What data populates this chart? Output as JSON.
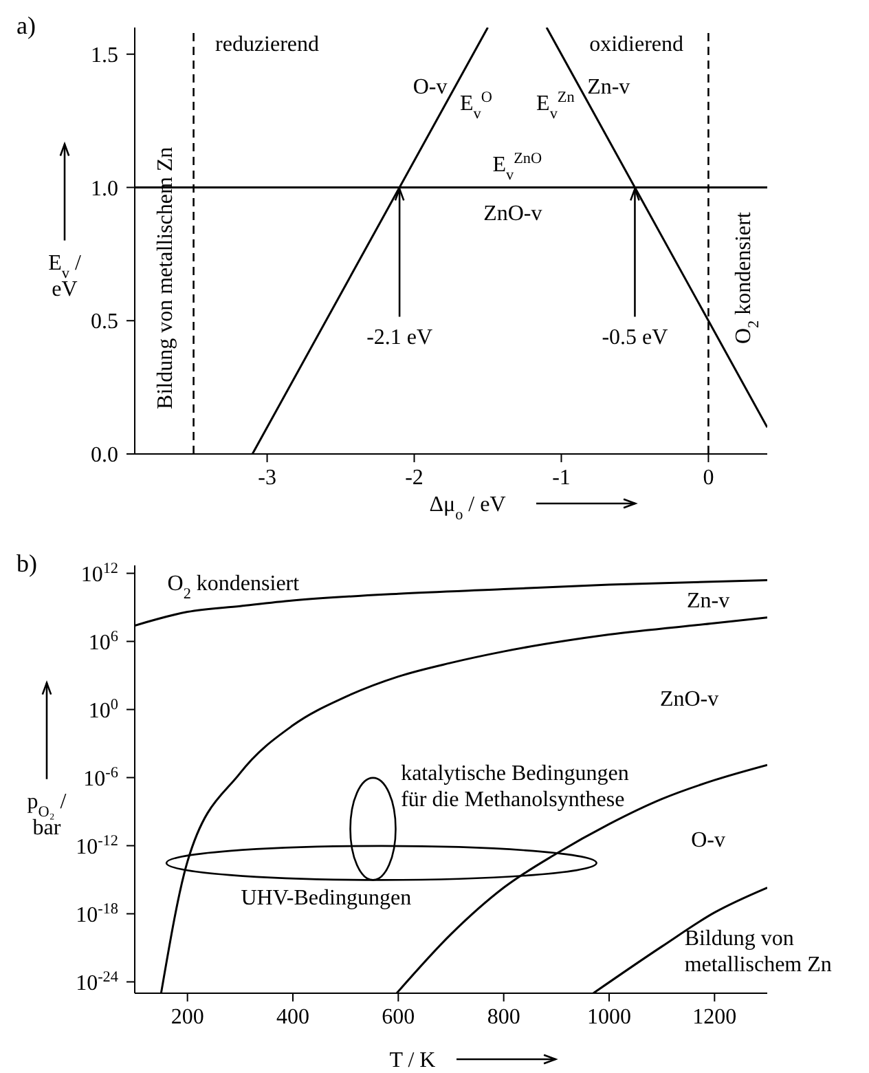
{
  "chart_data": [
    {
      "type": "line",
      "title": "a)",
      "xlabel": "Δμ$_{o}$ / eV",
      "ylabel": "E$_{v}$ /\neV",
      "xlim": [
        -3.9,
        0.4
      ],
      "xticks": [
        -3,
        -2,
        -1,
        0
      ],
      "ylim": [
        0,
        1.6
      ],
      "yticks": [
        {
          "value": 0,
          "label": "0.0"
        },
        0.5,
        {
          "value": 1,
          "label": "1.0"
        },
        1.5
      ],
      "legend": false,
      "marker": "none",
      "line_style": "solid",
      "series": [
        {
          "name": "O-v",
          "color": "#000000",
          "x": [
            -3.1,
            -2.1,
            -1.72,
            -1.5
          ],
          "values": [
            0,
            1,
            1.38,
            1.6
          ]
        },
        {
          "name": "Zn-v",
          "color": "#000000",
          "x": [
            -1.1,
            -0.88,
            -0.5,
            0.4
          ],
          "values": [
            1.6,
            1.38,
            1,
            0.1
          ]
        },
        {
          "name": "ZnO-v",
          "color": "#000000",
          "x": [
            -3.9,
            -1.33,
            0.4
          ],
          "values": [
            1,
            1,
            1
          ]
        }
      ],
      "ref_lines": [
        {
          "axis": "x",
          "value": -3.5,
          "color": "#000000",
          "line_style": "dashed"
        },
        {
          "axis": "x",
          "value": 0,
          "color": "#000000",
          "line_style": "dashed"
        }
      ],
      "annotations": [
        "reduzierend",
        "oxidierend",
        "Bildung von metallischem Zn",
        "O$_{2}$ kondensiert",
        "E$_{v}$$^{O}$",
        "E$_{v}$$^{Zn}$",
        "E$_{v}$$^{ZnO}$",
        {
          "text": "-2.1 eV",
          "x": -2.1,
          "y": 1
        },
        {
          "text": "-0.5 eV",
          "x": -0.5,
          "y": 1
        }
      ]
    },
    {
      "type": "line",
      "title": "b)",
      "xlabel": "T / K",
      "ylabel": "p$_{O₂}$ /\nbar",
      "log": "y",
      "xlim": [
        100,
        1300
      ],
      "xticks": [
        200,
        400,
        600,
        800,
        1000,
        1200
      ],
      "ylim": [
        1e-25,
        5000000000000.0
      ],
      "yticks": [
        {
          "value": 1e-24,
          "label": "10$^{-24}$"
        },
        {
          "value": 1e-18,
          "label": "10$^{-18}$"
        },
        {
          "value": 1e-12,
          "label": "10$^{-12}$"
        },
        {
          "value": 1e-06,
          "label": "10$^{-6}$"
        },
        {
          "value": 1,
          "label": "10$^{0}$"
        },
        {
          "value": 1000000.0,
          "label": "10$^{6}$"
        },
        {
          "value": 1000000000000.0,
          "label": "10$^{12}$"
        }
      ],
      "legend": false,
      "marker": "none",
      "line_style": "solid",
      "series": [
        {
          "color": "#000000",
          "x": [
            100,
            200,
            300,
            400,
            600,
            800,
            1000,
            1300
          ],
          "values": [
            25000000.0,
            400000000.0,
            1300000000.0,
            4000000000.0,
            16000000000.0,
            40000000000.0,
            100000000000.0,
            250000000000.0
          ]
        },
        {
          "color": "#000000",
          "x": [
            150,
            200,
            300,
            400,
            500,
            600,
            700,
            800,
            1000,
            1200,
            1300
          ],
          "values": [
            1e-25,
            4e-14,
            2.5e-06,
            0.04,
            13,
            800,
            13000.0,
            130000.0,
            4000000.0,
            40000000.0,
            130000000.0
          ]
        },
        {
          "color": "#000000",
          "x": [
            597,
            700,
            800,
            900,
            1000,
            1100,
            1200,
            1300
          ],
          "values": [
            1e-25,
            1.6e-20,
            2e-16,
            2e-13,
            8e-11,
            1.3e-08,
            6e-07,
            1.3e-05
          ]
        },
        {
          "color": "#000000",
          "x": [
            970,
            1100,
            1200,
            1300
          ],
          "values": [
            1e-25,
            1.3e-21,
            1.3e-18,
            2e-16
          ]
        }
      ],
      "annotations": [
        "O$_{2}$ kondensiert",
        "Zn-v",
        "ZnO-v",
        "katalytische Bedingungen\nfür die Methanolsynthese",
        "UHV-Bedingungen",
        "O-v",
        "Bildung von\nmetallischem Zn"
      ]
    }
  ]
}
